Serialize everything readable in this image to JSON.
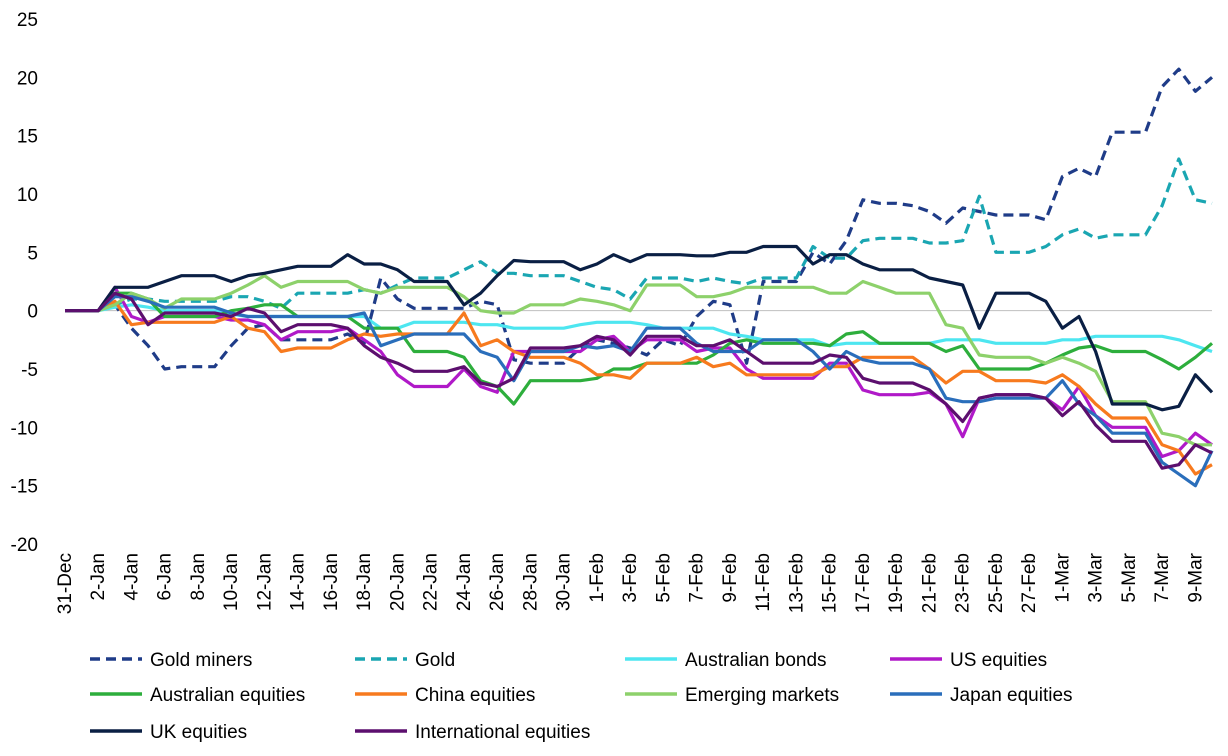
{
  "chart_data": {
    "type": "line",
    "title": "",
    "xlabel": "",
    "ylabel": "",
    "ylim": [
      -20,
      25
    ],
    "yticks": [
      -20,
      -15,
      -10,
      -5,
      0,
      5,
      10,
      15,
      20,
      25
    ],
    "grid": false,
    "legend_position": "bottom",
    "x": [
      "31-Dec",
      "1-Jan",
      "2-Jan",
      "3-Jan",
      "4-Jan",
      "5-Jan",
      "6-Jan",
      "7-Jan",
      "8-Jan",
      "9-Jan",
      "10-Jan",
      "11-Jan",
      "12-Jan",
      "13-Jan",
      "14-Jan",
      "15-Jan",
      "16-Jan",
      "17-Jan",
      "18-Jan",
      "19-Jan",
      "20-Jan",
      "21-Jan",
      "22-Jan",
      "23-Jan",
      "24-Jan",
      "25-Jan",
      "26-Jan",
      "27-Jan",
      "28-Jan",
      "29-Jan",
      "30-Jan",
      "31-Jan",
      "1-Feb",
      "2-Feb",
      "3-Feb",
      "4-Feb",
      "5-Feb",
      "6-Feb",
      "7-Feb",
      "8-Feb",
      "9-Feb",
      "10-Feb",
      "11-Feb",
      "12-Feb",
      "13-Feb",
      "14-Feb",
      "15-Feb",
      "16-Feb",
      "17-Feb",
      "18-Feb",
      "19-Feb",
      "20-Feb",
      "21-Feb",
      "22-Feb",
      "23-Feb",
      "24-Feb",
      "25-Feb",
      "26-Feb",
      "27-Feb",
      "28-Feb",
      "1-Mar",
      "2-Mar",
      "3-Mar",
      "4-Mar",
      "5-Mar",
      "6-Mar",
      "7-Mar",
      "8-Mar",
      "9-Mar",
      "10-Mar"
    ],
    "x_tick_labels": [
      "31-Dec",
      "2-Jan",
      "4-Jan",
      "6-Jan",
      "8-Jan",
      "10-Jan",
      "12-Jan",
      "14-Jan",
      "16-Jan",
      "18-Jan",
      "20-Jan",
      "22-Jan",
      "24-Jan",
      "26-Jan",
      "28-Jan",
      "30-Jan",
      "1-Feb",
      "3-Feb",
      "5-Feb",
      "7-Feb",
      "9-Feb",
      "11-Feb",
      "13-Feb",
      "15-Feb",
      "17-Feb",
      "19-Feb",
      "21-Feb",
      "23-Feb",
      "25-Feb",
      "27-Feb",
      "1-Mar",
      "3-Mar",
      "5-Mar",
      "7-Mar",
      "9-Mar"
    ],
    "series": [
      {
        "name": "Gold miners",
        "color": "#1F3C88",
        "dash": true,
        "values": [
          0,
          0,
          0,
          0.5,
          -1.5,
          -3,
          -5,
          -4.8,
          -4.8,
          -4.8,
          -3,
          -1.5,
          -1.2,
          -2.5,
          -2.5,
          -2.5,
          -2.5,
          -2,
          -2.8,
          2.8,
          1,
          0.2,
          0.2,
          0.2,
          0.2,
          0.8,
          0.5,
          -4.2,
          -4.5,
          -4.5,
          -4.5,
          -3.2,
          -2.5,
          -2.8,
          -3.2,
          -3.8,
          -2.5,
          -3,
          -0.5,
          0.8,
          0.5,
          -4.5,
          2.5,
          2.5,
          2.5,
          5,
          4,
          6,
          9.5,
          9.2,
          9.2,
          9,
          8.5,
          7.5,
          8.8,
          8.5,
          8.2,
          8.2,
          8.2,
          7.8,
          11.5,
          12.2,
          11.5,
          15.3,
          15.3,
          15.3,
          19.2,
          20.7,
          18.8,
          20
        ]
      },
      {
        "name": "Gold",
        "color": "#1AA6B2",
        "dash": true,
        "values": [
          0,
          0,
          0,
          0.5,
          1,
          1,
          0.8,
          0.8,
          0.8,
          0.8,
          1.2,
          1.2,
          0.8,
          0.2,
          1.5,
          1.5,
          1.5,
          1.5,
          1.8,
          1.5,
          2.2,
          2.8,
          2.8,
          2.8,
          3.5,
          4.2,
          3.2,
          3.2,
          3,
          3,
          3,
          2.5,
          2,
          1.8,
          1,
          2.8,
          2.8,
          2.8,
          2.5,
          2.8,
          2.5,
          2.3,
          2.8,
          2.8,
          2.8,
          5.5,
          4.5,
          4.5,
          6,
          6.2,
          6.2,
          6.2,
          5.8,
          5.8,
          6,
          9.8,
          5,
          5,
          5,
          5.5,
          6.5,
          7,
          6.2,
          6.5,
          6.5,
          6.5,
          9,
          13,
          9.5,
          9.2
        ]
      },
      {
        "name": "Australian bonds",
        "color": "#4DE6F0",
        "dash": false,
        "values": [
          0,
          0,
          0,
          0.3,
          0.5,
          0.3,
          0,
          0,
          0,
          0,
          -0.3,
          -0.5,
          -0.5,
          -0.5,
          -0.5,
          -0.5,
          -0.5,
          -0.5,
          -0.5,
          -1.5,
          -1.5,
          -1,
          -1,
          -1,
          -1,
          -1.2,
          -1.2,
          -1.5,
          -1.5,
          -1.5,
          -1.5,
          -1.2,
          -1,
          -1,
          -1,
          -1.2,
          -1.5,
          -1.5,
          -1.5,
          -1.5,
          -2,
          -2.2,
          -2.5,
          -2.5,
          -2.5,
          -2.5,
          -3,
          -2.8,
          -2.8,
          -2.8,
          -2.8,
          -2.8,
          -2.8,
          -2.5,
          -2.5,
          -2.5,
          -2.8,
          -2.8,
          -2.8,
          -2.8,
          -2.5,
          -2.5,
          -2.2,
          -2.2,
          -2.2,
          -2.2,
          -2.2,
          -2.5,
          -3,
          -3.5
        ]
      },
      {
        "name": "US equities",
        "color": "#B019C8",
        "dash": false,
        "values": [
          0,
          0,
          0,
          2,
          -0.5,
          -1,
          -0.5,
          -0.5,
          -0.5,
          -0.5,
          -0.8,
          -0.8,
          -1.2,
          -2.5,
          -1.8,
          -1.8,
          -1.8,
          -1.5,
          -2.5,
          -3.5,
          -5.5,
          -6.5,
          -6.5,
          -6.5,
          -5,
          -6.5,
          -7,
          -3.5,
          -3.5,
          -3.5,
          -3.5,
          -3.5,
          -2.5,
          -2.2,
          -3.5,
          -2.5,
          -2.5,
          -2.5,
          -3.5,
          -3.2,
          -3.2,
          -5,
          -5.8,
          -5.8,
          -5.8,
          -5.8,
          -4.5,
          -4.5,
          -6.8,
          -7.2,
          -7.2,
          -7.2,
          -7,
          -8,
          -10.8,
          -7.5,
          -7.2,
          -7.2,
          -7.2,
          -7.5,
          -8.5,
          -6.5,
          -9,
          -10,
          -10,
          -10,
          -12.5,
          -12,
          -10.5,
          -11.5
        ]
      },
      {
        "name": "Australian equities",
        "color": "#2DAE3C",
        "dash": false,
        "values": [
          0,
          0,
          0,
          1.5,
          1.5,
          1,
          -0.5,
          -0.5,
          -0.5,
          -0.5,
          0,
          0.2,
          0.5,
          0.5,
          -0.5,
          -0.5,
          -0.5,
          -0.5,
          -1.5,
          -1.5,
          -1.5,
          -3.5,
          -3.5,
          -3.5,
          -4,
          -6,
          -6.5,
          -8,
          -6,
          -6,
          -6,
          -6,
          -5.8,
          -5,
          -5,
          -4.5,
          -4.5,
          -4.5,
          -4.5,
          -3.8,
          -2.8,
          -2.5,
          -2.8,
          -2.8,
          -2.8,
          -2.8,
          -3,
          -2,
          -1.8,
          -2.8,
          -2.8,
          -2.8,
          -2.8,
          -3.5,
          -3,
          -5,
          -5,
          -5,
          -5,
          -4.5,
          -3.8,
          -3.2,
          -3,
          -3.5,
          -3.5,
          -3.5,
          -4.2,
          -5,
          -4,
          -2.8
        ]
      },
      {
        "name": "China equities",
        "color": "#F77A1E",
        "dash": false,
        "values": [
          0,
          0,
          0,
          0.8,
          -1.2,
          -1,
          -1,
          -1,
          -1,
          -1,
          -0.5,
          -1.5,
          -1.8,
          -3.5,
          -3.2,
          -3.2,
          -3.2,
          -2.5,
          -2,
          -2.2,
          -2,
          -2,
          -2,
          -2,
          -0.2,
          -3,
          -2.5,
          -3.5,
          -4,
          -4,
          -4,
          -4.5,
          -5.5,
          -5.5,
          -5.8,
          -4.5,
          -4.5,
          -4.5,
          -4,
          -4.8,
          -4.5,
          -5.5,
          -5.5,
          -5.5,
          -5.5,
          -5.5,
          -4.8,
          -4.8,
          -4,
          -4,
          -4,
          -4,
          -5,
          -6.2,
          -5.2,
          -5.2,
          -6,
          -6,
          -6,
          -6.2,
          -5.5,
          -6.5,
          -8,
          -9.2,
          -9.2,
          -9.2,
          -11.5,
          -12,
          -14,
          -13.2
        ]
      },
      {
        "name": "Emerging markets",
        "color": "#8DD16B",
        "dash": false,
        "values": [
          0,
          0,
          0,
          0.5,
          1.5,
          1,
          0.2,
          1,
          1,
          1,
          1.5,
          2.2,
          3,
          2,
          2.5,
          2.5,
          2.5,
          2.5,
          1.8,
          1.5,
          2,
          2,
          2,
          2,
          1.2,
          0,
          -0.2,
          -0.2,
          0.5,
          0.5,
          0.5,
          1,
          0.8,
          0.5,
          0,
          2.2,
          2.2,
          2.2,
          1.2,
          1.2,
          1.5,
          2,
          2,
          2,
          2,
          2,
          1.5,
          1.5,
          2.5,
          2,
          1.5,
          1.5,
          1.5,
          -1.2,
          -1.5,
          -3.8,
          -4,
          -4,
          -4,
          -4.5,
          -4,
          -4.5,
          -5.2,
          -7.8,
          -7.8,
          -7.8,
          -10.5,
          -10.8,
          -11.5,
          -11.5
        ]
      },
      {
        "name": "Japan equities",
        "color": "#2A6EBB",
        "dash": false,
        "values": [
          0,
          0,
          0,
          1.2,
          1.2,
          0.8,
          0.3,
          0.3,
          0.3,
          0.3,
          -0.2,
          -0.5,
          -0.5,
          -0.5,
          -0.5,
          -0.5,
          -0.5,
          -0.5,
          -0.2,
          -3,
          -2.5,
          -2,
          -2,
          -2,
          -2,
          -3.5,
          -4,
          -6,
          -3.5,
          -3.5,
          -3.5,
          -3,
          -3.2,
          -3,
          -3.5,
          -1.5,
          -1.5,
          -1.5,
          -2.8,
          -3.5,
          -3.5,
          -3.5,
          -2.5,
          -2.5,
          -2.5,
          -3.5,
          -5,
          -3.5,
          -4.2,
          -4.5,
          -4.5,
          -4.5,
          -5,
          -7.5,
          -7.8,
          -7.8,
          -7.5,
          -7.5,
          -7.5,
          -7.5,
          -6,
          -8,
          -9,
          -10.5,
          -10.5,
          -10.5,
          -13,
          -14,
          -15,
          -12
        ]
      },
      {
        "name": "UK equities",
        "color": "#0A1F44",
        "dash": false,
        "values": [
          0,
          0,
          0,
          2,
          2,
          2,
          2.5,
          3,
          3,
          3,
          2.5,
          3,
          3.2,
          3.5,
          3.8,
          3.8,
          3.8,
          4.8,
          4,
          4,
          3.5,
          2.5,
          2.5,
          2.5,
          0.5,
          1.5,
          3,
          4.3,
          4.2,
          4.2,
          4.2,
          3.5,
          4,
          4.8,
          4.2,
          4.8,
          4.8,
          4.8,
          4.7,
          4.7,
          5,
          5,
          5.5,
          5.5,
          5.5,
          4,
          4.8,
          4.8,
          4,
          3.5,
          3.5,
          3.5,
          2.8,
          2.5,
          2.2,
          -1.5,
          1.5,
          1.5,
          1.5,
          0.8,
          -1.5,
          -0.5,
          -3.5,
          -8,
          -8,
          -8,
          -8.5,
          -8.2,
          -5.5,
          -7
        ]
      },
      {
        "name": "International equities",
        "color": "#5C0F6E",
        "dash": false,
        "values": [
          0,
          0,
          0,
          1.5,
          1,
          -1.2,
          -0.2,
          -0.2,
          -0.2,
          -0.2,
          -0.5,
          0.2,
          -0.2,
          -1.8,
          -1.2,
          -1.2,
          -1.2,
          -1.5,
          -3,
          -4,
          -4.5,
          -5.2,
          -5.2,
          -5.2,
          -4.8,
          -6.2,
          -6.5,
          -5.8,
          -3.2,
          -3.2,
          -3.2,
          -3,
          -2.2,
          -2.5,
          -3.8,
          -2.2,
          -2.2,
          -2.2,
          -3,
          -3,
          -2.5,
          -3.5,
          -4.5,
          -4.5,
          -4.5,
          -4.5,
          -3.8,
          -4,
          -5.8,
          -6.2,
          -6.2,
          -6.2,
          -6.8,
          -8,
          -9.5,
          -7.5,
          -7.2,
          -7.2,
          -7.2,
          -7.5,
          -9,
          -7.8,
          -9.8,
          -11.2,
          -11.2,
          -11.2,
          -13.5,
          -13.2,
          -11.5,
          -12.2
        ]
      }
    ]
  }
}
